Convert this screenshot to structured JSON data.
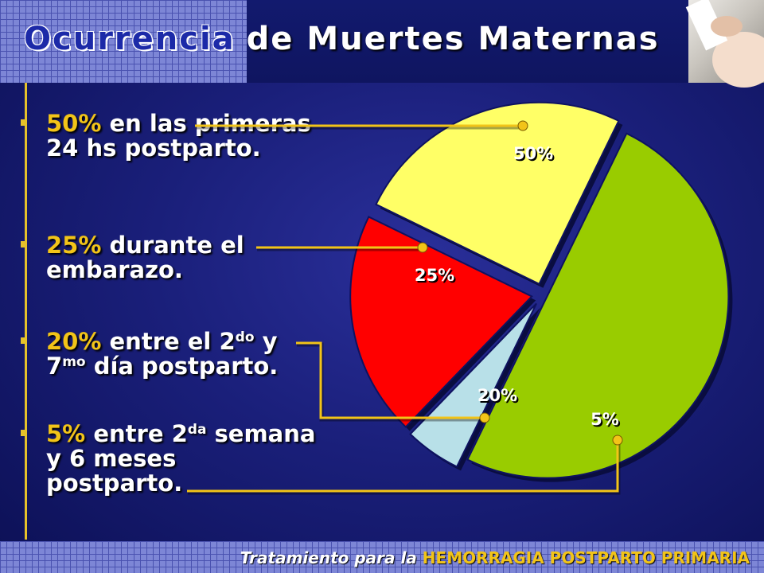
{
  "header": {
    "title_part1": "Ocurrencia",
    "title_part2": "de Muertes Maternas"
  },
  "bullets": [
    {
      "pct": "50%",
      "pre": " en las primeras 24 hs postparto.",
      "sup1": "",
      "mid": "",
      "sup2": "",
      "post": ""
    },
    {
      "pct": "25%",
      "pre": " durante el embarazo.",
      "sup1": "",
      "mid": "",
      "sup2": "",
      "post": ""
    },
    {
      "pct": "20%",
      "pre": " entre el 2",
      "sup1": "do",
      "mid": " y 7",
      "sup2": "mo",
      "post": " día postparto."
    },
    {
      "pct": "5%",
      "pre": " entre 2",
      "sup1": "da",
      "mid": " semana y 6 meses postparto.",
      "sup2": "",
      "post": ""
    }
  ],
  "chart_data": {
    "type": "pie",
    "slices": [
      {
        "label": "50%",
        "value": 50,
        "color": "#99cc00"
      },
      {
        "label": "5%",
        "value": 5,
        "color": "#b8e0e8"
      },
      {
        "label": "20%",
        "value": 20,
        "color": "#ff0000"
      },
      {
        "label": "25%",
        "value": 25,
        "color": "#ffff66"
      }
    ],
    "leader_color": "#f2c418"
  },
  "footer": {
    "prefix": "Tratamiento para la ",
    "highlight": "HEMORRAGIA POSTPARTO PRIMARIA"
  }
}
